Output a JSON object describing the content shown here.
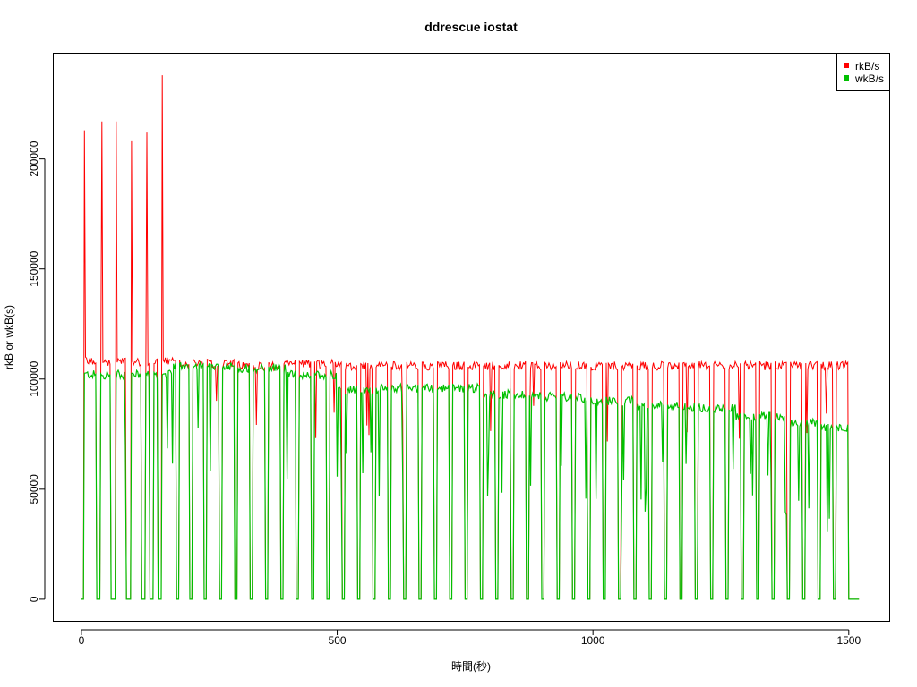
{
  "chart_data": {
    "type": "line",
    "title": "ddrescue iostat",
    "xlabel": "時間(秒)",
    "ylabel": "rkB or wkB(s)",
    "xlim": [
      -55,
      1580
    ],
    "ylim": [
      -10000,
      248000
    ],
    "x_ticks": [
      0,
      500,
      1000,
      1500
    ],
    "y_ticks": [
      0,
      50000,
      100000,
      150000,
      200000
    ],
    "x_tick_labels": [
      "0",
      "500",
      "1000",
      "1500"
    ],
    "y_tick_labels": [
      "0",
      "50000",
      "100000",
      "150000",
      "200000"
    ],
    "legend": {
      "placement": "top-right"
    },
    "series": [
      {
        "name": "rkB/s",
        "color": "#ff0000"
      },
      {
        "name": "wkB/s",
        "color": "#00c000"
      }
    ],
    "plateaus": [
      [
        0,
        108000,
        102000
      ],
      [
        180,
        107000,
        106000
      ],
      [
        300,
        106000,
        105000
      ],
      [
        400,
        107000,
        102000
      ],
      [
        500,
        106000,
        95000
      ],
      [
        580,
        106000,
        96000
      ],
      [
        700,
        106000,
        96000
      ],
      [
        780,
        106000,
        93000
      ],
      [
        880,
        106000,
        92000
      ],
      [
        980,
        106000,
        90000
      ],
      [
        1080,
        106000,
        88000
      ],
      [
        1180,
        106000,
        87000
      ],
      [
        1280,
        106000,
        83000
      ],
      [
        1380,
        106000,
        80000
      ],
      [
        1440,
        106000,
        78000
      ],
      [
        1500,
        106000,
        78000
      ]
    ],
    "dropouts": [
      [
        0,
        5
      ],
      [
        30,
        36
      ],
      [
        58,
        66
      ],
      [
        88,
        96
      ],
      [
        118,
        124
      ],
      [
        134,
        140
      ],
      [
        150,
        156
      ],
      [
        185,
        190
      ],
      [
        212,
        216
      ],
      [
        240,
        244
      ],
      [
        270,
        274
      ],
      [
        300,
        304
      ],
      [
        330,
        334
      ],
      [
        360,
        364
      ],
      [
        390,
        394
      ],
      [
        420,
        424
      ],
      [
        450,
        454
      ],
      [
        480,
        484
      ],
      [
        510,
        514
      ],
      [
        540,
        544
      ],
      [
        570,
        574
      ],
      [
        600,
        604
      ],
      [
        630,
        634
      ],
      [
        660,
        664
      ],
      [
        690,
        694
      ],
      [
        720,
        724
      ],
      [
        750,
        754
      ],
      [
        780,
        784
      ],
      [
        810,
        814
      ],
      [
        840,
        844
      ],
      [
        870,
        874
      ],
      [
        900,
        904
      ],
      [
        930,
        934
      ],
      [
        960,
        964
      ],
      [
        990,
        994
      ],
      [
        1020,
        1024
      ],
      [
        1050,
        1054
      ],
      [
        1080,
        1084
      ],
      [
        1110,
        1114
      ],
      [
        1140,
        1144
      ],
      [
        1170,
        1174
      ],
      [
        1200,
        1204
      ],
      [
        1230,
        1234
      ],
      [
        1260,
        1264
      ],
      [
        1290,
        1294
      ],
      [
        1320,
        1324
      ],
      [
        1350,
        1354
      ],
      [
        1380,
        1384
      ],
      [
        1410,
        1414
      ],
      [
        1440,
        1444
      ],
      [
        1470,
        1474
      ],
      [
        1500,
        1520
      ]
    ],
    "read_spikes": [
      [
        5,
        213000
      ],
      [
        40,
        217000
      ],
      [
        68,
        217000
      ],
      [
        98,
        208000
      ],
      [
        128,
        212000
      ],
      [
        140,
        238000
      ],
      [
        157,
        238000
      ]
    ],
    "x_end": 1520
  }
}
